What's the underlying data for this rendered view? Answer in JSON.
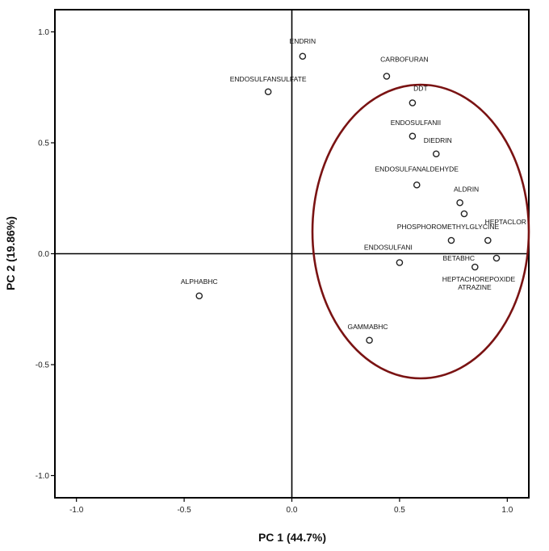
{
  "chart_data": {
    "type": "scatter",
    "xlabel": "PC 1 (44.7%)",
    "ylabel": "PC 2 (19.86%)",
    "xlim": [
      -1.1,
      1.1
    ],
    "ylim": [
      -1.1,
      1.1
    ],
    "x_ticks": [
      -1.0,
      -0.5,
      0.0,
      0.5,
      1.0
    ],
    "y_ticks": [
      1.0,
      0.5,
      0.0,
      -0.5,
      -1.0
    ],
    "x_tick_labels": [
      "-1.0",
      "-0.5",
      "0.0",
      "0.5",
      "1.0"
    ],
    "y_tick_labels": [
      "1.0",
      "0.5",
      "0.0",
      "-0.5",
      "-1.0"
    ],
    "reference_lines": {
      "x": 0,
      "y": 0
    },
    "grid": false,
    "points": [
      {
        "label": "ENDRIN",
        "x": 0.05,
        "y": 0.89
      },
      {
        "label": "ENDOSULFANSULFATE",
        "x": -0.11,
        "y": 0.73
      },
      {
        "label": "CARBOFURAN",
        "x": 0.44,
        "y": 0.8
      },
      {
        "label": "DDT",
        "x": 0.56,
        "y": 0.68
      },
      {
        "label": "ENDOSULFANII",
        "x": 0.56,
        "y": 0.53
      },
      {
        "label": "DIEDRIN",
        "x": 0.67,
        "y": 0.45
      },
      {
        "label": "ENDOSULFANALDEHYDE",
        "x": 0.58,
        "y": 0.31
      },
      {
        "label": "ALDRIN",
        "x": 0.78,
        "y": 0.23
      },
      {
        "label": "PHOSPHOROMETHYLGLYCINE",
        "x": 0.74,
        "y": 0.06
      },
      {
        "label": "HEPTACLOR",
        "x": 0.91,
        "y": 0.06
      },
      {
        "label": "ENDOSULFANI",
        "x": 0.5,
        "y": -0.04
      },
      {
        "label": "BETABHC",
        "x": 0.85,
        "y": -0.06
      },
      {
        "label": "HEPTACHOREPOXIDE",
        "x": 0.95,
        "y": -0.02
      },
      {
        "label": "ATRAZINE",
        "x": 0.8,
        "y": 0.18
      },
      {
        "label": "ALPHABHC",
        "x": -0.43,
        "y": -0.19
      },
      {
        "label": "GAMMABHC",
        "x": 0.36,
        "y": -0.39
      }
    ],
    "annotations": [
      "ellipse grouping the pesticides in the right half"
    ],
    "colors": {
      "ellipse": "#7a1313",
      "points": "#222222",
      "axes": "#000000"
    }
  }
}
